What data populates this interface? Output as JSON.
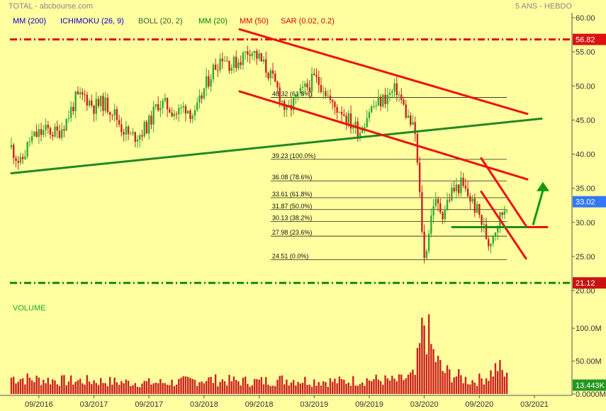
{
  "header": {
    "source": "TOTAL - abcbourse.com",
    "period": "5 ANS - HEBDO"
  },
  "indicators": [
    {
      "label": "MM (200)",
      "color": "#0000cc"
    },
    {
      "label": "ICHIMOKU (26, 9)",
      "color": "#0000cc"
    },
    {
      "label": "BOLL (20, 2)",
      "color": "#336633"
    },
    {
      "label": "MM (20)",
      "color": "#008800"
    },
    {
      "label": "MM (50)",
      "color": "#dd0000"
    },
    {
      "label": "SAR (0.02, 0.2)",
      "color": "#dd0000"
    }
  ],
  "volume_label": "VOLUME",
  "colors": {
    "background": "#ffffa0",
    "candle_up": "#33aa33",
    "candle_down": "#cc2222",
    "red_line": "#ee1111",
    "green_line": "#228822",
    "volume_bar": "#cc2222",
    "price_tag": "#3377ff",
    "level_tag": "#cc1111",
    "volume_tag": "#229922"
  },
  "chart_data": {
    "type": "candlestick",
    "price_axis": {
      "ticks": [
        60,
        55,
        50,
        45,
        40,
        35,
        30,
        25,
        20
      ],
      "tick_labels": [
        "60.00",
        "55.00",
        "50.00",
        "45.00",
        "40.00",
        "35.00",
        "30.00",
        "25.00",
        "20.00"
      ],
      "ylim": [
        20,
        60
      ]
    },
    "volume_axis": {
      "ticks": [
        100,
        50,
        0
      ],
      "tick_labels": [
        "100.0M",
        "50.00M",
        "0.0000M"
      ],
      "ylim": [
        0,
        125
      ]
    },
    "x_axis": {
      "range": [
        "2016-06",
        "2021-03"
      ],
      "ticks": [
        {
          "date": "2016-09",
          "label": "09/2016"
        },
        {
          "date": "2017-03",
          "label": "03/2017"
        },
        {
          "date": "2017-09",
          "label": "09/2017"
        },
        {
          "date": "2018-03",
          "label": "03/2018"
        },
        {
          "date": "2018-09",
          "label": "09/2018"
        },
        {
          "date": "2019-03",
          "label": "03/2019"
        },
        {
          "date": "2019-09",
          "label": "09/2019"
        },
        {
          "date": "2020-03",
          "label": "03/2020"
        },
        {
          "date": "2020-09",
          "label": "09/2020"
        },
        {
          "date": "2021-03",
          "label": "03/2021"
        }
      ]
    },
    "price_path": [
      [
        "2016-06",
        41.0
      ],
      [
        "2016-07",
        38.5
      ],
      [
        "2016-08",
        42.0
      ],
      [
        "2016-09",
        43.0
      ],
      [
        "2016-10",
        43.5
      ],
      [
        "2016-11",
        43.0
      ],
      [
        "2016-12",
        45.0
      ],
      [
        "2017-01",
        48.0
      ],
      [
        "2017-02",
        48.5
      ],
      [
        "2017-03",
        47.0
      ],
      [
        "2017-04",
        47.5
      ],
      [
        "2017-05",
        46.5
      ],
      [
        "2017-06",
        44.0
      ],
      [
        "2017-07",
        42.5
      ],
      [
        "2017-08",
        43.0
      ],
      [
        "2017-09",
        44.5
      ],
      [
        "2017-10",
        47.5
      ],
      [
        "2017-11",
        47.0
      ],
      [
        "2017-12",
        46.0
      ],
      [
        "2018-01",
        47.0
      ],
      [
        "2018-02",
        45.5
      ],
      [
        "2018-03",
        49.5
      ],
      [
        "2018-04",
        52.5
      ],
      [
        "2018-05",
        54.5
      ],
      [
        "2018-06",
        53.0
      ],
      [
        "2018-07",
        54.0
      ],
      [
        "2018-08",
        55.5
      ],
      [
        "2018-09",
        54.0
      ],
      [
        "2018-10",
        52.0
      ],
      [
        "2018-11",
        49.5
      ],
      [
        "2018-12",
        46.0
      ],
      [
        "2019-01",
        48.0
      ],
      [
        "2019-02",
        49.5
      ],
      [
        "2019-03",
        51.0
      ],
      [
        "2019-04",
        50.0
      ],
      [
        "2019-05",
        47.0
      ],
      [
        "2019-06",
        46.5
      ],
      [
        "2019-07",
        44.5
      ],
      [
        "2019-08",
        43.5
      ],
      [
        "2019-09",
        46.5
      ],
      [
        "2019-10",
        47.5
      ],
      [
        "2019-11",
        48.5
      ],
      [
        "2019-12",
        49.5
      ],
      [
        "2020-01",
        46.0
      ],
      [
        "2020-02",
        43.0
      ],
      [
        "2020-03",
        24.5
      ],
      [
        "2020-04",
        33.0
      ],
      [
        "2020-05",
        31.5
      ],
      [
        "2020-06",
        34.5
      ],
      [
        "2020-07",
        35.5
      ],
      [
        "2020-08",
        33.5
      ],
      [
        "2020-09",
        31.0
      ],
      [
        "2020-10",
        27.0
      ],
      [
        "2020-11",
        30.0
      ],
      [
        "2020-12",
        33.0
      ]
    ],
    "volume_path": [
      [
        "2016-06",
        25
      ],
      [
        "2016-09",
        22
      ],
      [
        "2016-12",
        20
      ],
      [
        "2017-03",
        20
      ],
      [
        "2017-06",
        18
      ],
      [
        "2017-09",
        17
      ],
      [
        "2017-12",
        18
      ],
      [
        "2018-03",
        22
      ],
      [
        "2018-06",
        20
      ],
      [
        "2018-09",
        19
      ],
      [
        "2018-12",
        22
      ],
      [
        "2019-03",
        20
      ],
      [
        "2019-06",
        19
      ],
      [
        "2019-09",
        22
      ],
      [
        "2019-12",
        20
      ],
      [
        "2020-02",
        28
      ],
      [
        "2020-03",
        110
      ],
      [
        "2020-04",
        60
      ],
      [
        "2020-05",
        35
      ],
      [
        "2020-06",
        30
      ],
      [
        "2020-07",
        25
      ],
      [
        "2020-08",
        20
      ],
      [
        "2020-09",
        22
      ],
      [
        "2020-10",
        28
      ],
      [
        "2020-11",
        42
      ],
      [
        "2020-12",
        25
      ]
    ],
    "last_price": {
      "value": 33.02,
      "label": "33.02"
    },
    "last_volume": {
      "value": 13.443,
      "label": "13.443K"
    },
    "horizontal_levels": [
      {
        "value": 56.82,
        "label": "56.82",
        "color": "#dd1111"
      },
      {
        "value": 21.12,
        "label": "21.12",
        "color": "#118811"
      }
    ],
    "fibonacci_upper": {
      "start": "2019-10",
      "end": "2020-12",
      "levels": [
        {
          "value": 48.32,
          "label": "48.32",
          "pct": "(61.8%)"
        }
      ]
    },
    "fibonacci_lower": {
      "start": "2019-10",
      "end": "2020-12",
      "levels": [
        {
          "value": 39.23,
          "label": "39.23",
          "pct": "(100.0%)"
        },
        {
          "value": 36.08,
          "label": "36.08",
          "pct": "(78.6%)"
        },
        {
          "value": 33.61,
          "label": "33.61",
          "pct": "(61.8%)"
        },
        {
          "value": 31.87,
          "label": "31.87",
          "pct": "(50.0%)"
        },
        {
          "value": 30.13,
          "label": "30.13",
          "pct": "(38.2%)"
        },
        {
          "value": 27.98,
          "label": "27.98",
          "pct": "(23.6%)"
        },
        {
          "value": 24.51,
          "label": "24.51",
          "pct": "(0.0%)"
        }
      ]
    },
    "trendlines": [
      {
        "name": "green-support",
        "color": "#228822",
        "from": [
          "2016-06",
          37.2
        ],
        "to": [
          "2020-12",
          45.2
        ]
      },
      {
        "name": "red-channel-top",
        "color": "#ee1111",
        "from": [
          "2018-03",
          58.3
        ],
        "to": [
          "2020-12",
          45.9
        ]
      },
      {
        "name": "red-channel-bottom",
        "color": "#ee1111",
        "from": [
          "2018-03",
          49.2
        ],
        "to": [
          "2020-12",
          36.3
        ]
      },
      {
        "name": "red-wedge-top",
        "color": "#ee1111",
        "from": [
          "2020-05",
          39.4
        ],
        "to": [
          "2020-12",
          29.5
        ]
      },
      {
        "name": "red-wedge-bottom",
        "color": "#ee1111",
        "from": [
          "2020-05",
          34.5
        ],
        "to": [
          "2020-12",
          24.7
        ]
      },
      {
        "name": "red-breakout-level",
        "color": "#ee1111",
        "from": [
          "2020-11",
          29.3
        ],
        "to": [
          "2020-12",
          29.3
        ]
      },
      {
        "name": "green-range-level",
        "color": "#228822",
        "from": [
          "2020-03",
          29.3
        ],
        "to": [
          "2020-11",
          29.3
        ]
      }
    ],
    "breakout_arrow": {
      "from": [
        "2020-11",
        29.6
      ],
      "to": [
        "2020-12",
        35.3
      ],
      "color": "#119911"
    }
  }
}
